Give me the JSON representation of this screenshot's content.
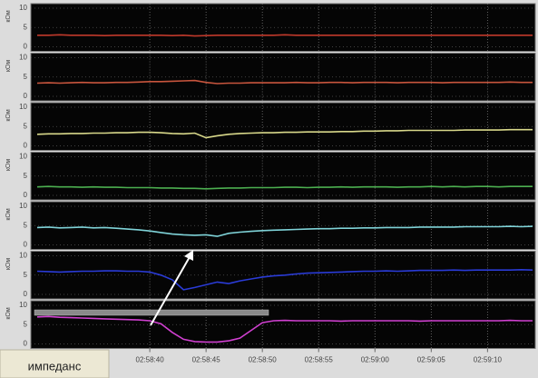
{
  "chart_data": {
    "type": "line",
    "stacked_panels": true,
    "ylabel": "кОм",
    "footer_label": "импеданс",
    "ylim": [
      0,
      10
    ],
    "yticks": [
      0,
      5,
      10
    ],
    "grid": true,
    "xlim": [
      "02:58:30",
      "02:59:14"
    ],
    "xticks": [
      "02:58:40",
      "02:58:45",
      "02:58:50",
      "02:58:55",
      "02:59:00",
      "02:59:05",
      "02:59:10"
    ],
    "x": [
      "02:58:30",
      "02:58:31",
      "02:58:32",
      "02:58:33",
      "02:58:34",
      "02:58:35",
      "02:58:36",
      "02:58:37",
      "02:58:38",
      "02:58:39",
      "02:58:40",
      "02:58:41",
      "02:58:42",
      "02:58:43",
      "02:58:44",
      "02:58:45",
      "02:58:46",
      "02:58:47",
      "02:58:48",
      "02:58:49",
      "02:58:50",
      "02:58:51",
      "02:58:52",
      "02:58:53",
      "02:58:54",
      "02:58:55",
      "02:58:56",
      "02:58:57",
      "02:58:58",
      "02:58:59",
      "02:59:00",
      "02:59:01",
      "02:59:02",
      "02:59:03",
      "02:59:04",
      "02:59:05",
      "02:59:06",
      "02:59:07",
      "02:59:08",
      "02:59:09",
      "02:59:10",
      "02:59:11",
      "02:59:12",
      "02:59:13",
      "02:59:14"
    ],
    "series": [
      {
        "color": "#c0392b",
        "values": [
          3,
          3,
          3.1,
          3,
          3,
          3,
          2.9,
          3,
          3,
          3,
          3,
          3,
          2.9,
          3,
          2.8,
          2.9,
          3,
          3,
          3,
          3,
          3,
          3,
          3.1,
          3,
          3,
          3,
          3,
          3,
          3,
          3,
          3,
          3,
          3,
          3,
          3,
          3,
          3,
          3,
          3,
          3,
          3,
          3,
          3,
          3,
          3
        ]
      },
      {
        "color": "#c8553d",
        "values": [
          3.4,
          3.5,
          3.4,
          3.5,
          3.6,
          3.5,
          3.5,
          3.6,
          3.6,
          3.7,
          3.8,
          3.8,
          3.9,
          4,
          4.1,
          3.6,
          3.3,
          3.4,
          3.4,
          3.5,
          3.5,
          3.5,
          3.5,
          3.6,
          3.5,
          3.5,
          3.6,
          3.6,
          3.5,
          3.6,
          3.6,
          3.6,
          3.5,
          3.6,
          3.6,
          3.6,
          3.5,
          3.6,
          3.6,
          3.6,
          3.6,
          3.6,
          3.7,
          3.6,
          3.6
        ]
      },
      {
        "color": "#d8d88a",
        "values": [
          3,
          3.1,
          3.1,
          3.2,
          3.2,
          3.3,
          3.3,
          3.4,
          3.4,
          3.5,
          3.5,
          3.4,
          3.2,
          3.1,
          3.3,
          2.1,
          2.6,
          3,
          3.2,
          3.3,
          3.4,
          3.4,
          3.5,
          3.5,
          3.6,
          3.6,
          3.6,
          3.7,
          3.7,
          3.8,
          3.8,
          3.9,
          3.9,
          4,
          4,
          4,
          4,
          4,
          4.1,
          4.1,
          4.1,
          4.1,
          4.2,
          4.2,
          4.2
        ]
      },
      {
        "color": "#4caf50",
        "values": [
          2.2,
          2.3,
          2.2,
          2.2,
          2.1,
          2.2,
          2.1,
          2.1,
          2,
          2,
          2,
          1.9,
          1.9,
          1.8,
          1.8,
          1.7,
          1.8,
          1.9,
          1.9,
          2,
          2,
          2,
          2.1,
          2.1,
          2,
          2.1,
          2.1,
          2.2,
          2.1,
          2.2,
          2.2,
          2.2,
          2.1,
          2.2,
          2.2,
          2.3,
          2.2,
          2.3,
          2.2,
          2.3,
          2.3,
          2.2,
          2.3,
          2.3,
          2.3
        ]
      },
      {
        "color": "#7fd3d8",
        "values": [
          4.5,
          4.6,
          4.4,
          4.5,
          4.6,
          4.4,
          4.5,
          4.3,
          4.1,
          3.9,
          3.6,
          3.2,
          2.8,
          2.6,
          2.5,
          2.6,
          2.2,
          3,
          3.3,
          3.5,
          3.7,
          3.8,
          3.9,
          4,
          4.1,
          4.2,
          4.2,
          4.3,
          4.3,
          4.4,
          4.4,
          4.5,
          4.5,
          4.5,
          4.6,
          4.6,
          4.6,
          4.6,
          4.7,
          4.7,
          4.7,
          4.7,
          4.8,
          4.7,
          4.8
        ]
      },
      {
        "color": "#2a3bd6",
        "values": [
          6,
          5.9,
          5.8,
          5.9,
          6,
          6,
          6.1,
          6.1,
          6,
          6,
          5.8,
          5,
          3.8,
          1.2,
          1.8,
          2.5,
          3.2,
          2.8,
          3.5,
          4,
          4.5,
          4.8,
          5,
          5.3,
          5.5,
          5.6,
          5.7,
          5.8,
          5.9,
          6,
          6,
          6.1,
          6,
          6.1,
          6.2,
          6.2,
          6.2,
          6.3,
          6.2,
          6.3,
          6.3,
          6.3,
          6.3,
          6.4,
          6.3
        ]
      },
      {
        "color": "#d040d0",
        "values": [
          7,
          7.1,
          6.9,
          6.8,
          6.7,
          6.6,
          6.5,
          6.4,
          6.3,
          6.2,
          6,
          5.2,
          3,
          1.2,
          0.6,
          0.5,
          0.5,
          0.8,
          1.5,
          3.5,
          5.5,
          6,
          6.1,
          6,
          6,
          6,
          6,
          5.9,
          6,
          6,
          6,
          6,
          6,
          6,
          5.9,
          6,
          6,
          6,
          6,
          6,
          6,
          6,
          6.1,
          6,
          6
        ]
      }
    ]
  }
}
